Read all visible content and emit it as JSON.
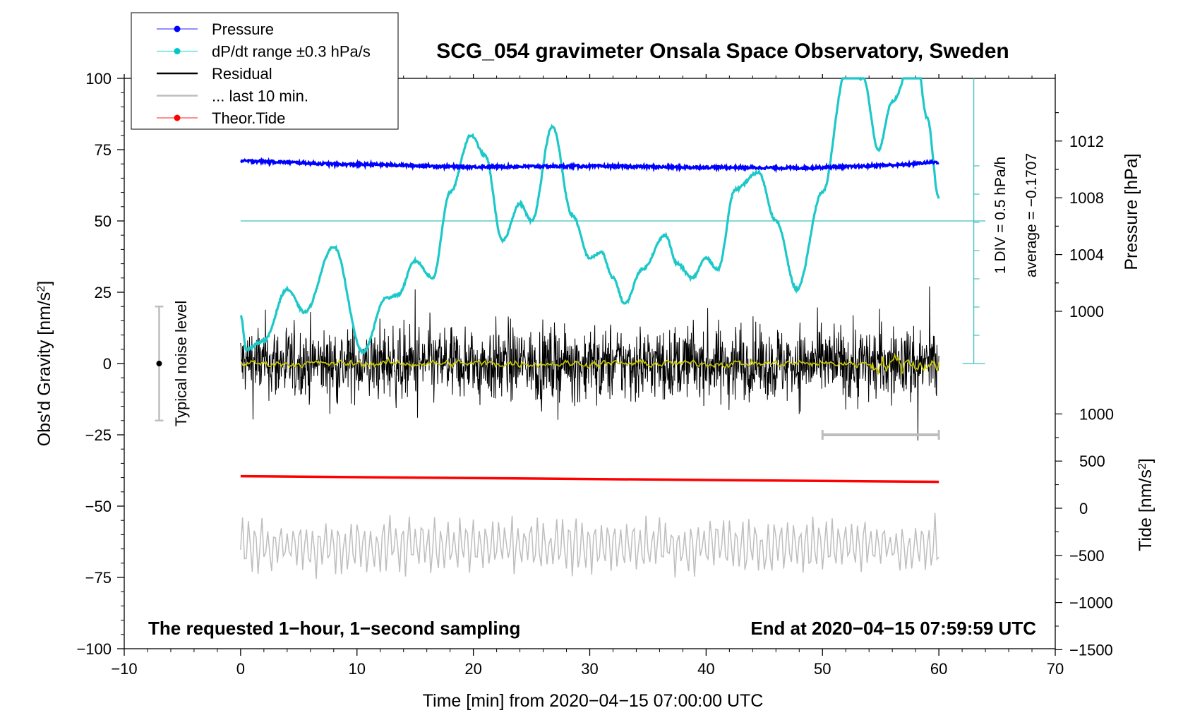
{
  "chart_data": {
    "type": "line",
    "title": "SCG_054 gravimeter Onsala Space Observatory, Sweden",
    "xlabel": "Time [min] from 2020−04−15 07:00:00 UTC",
    "ylabel_left_main": "Obs'd Gravity [nm/s",
    "ylabel_left_sup": "2",
    "ylabel_left_end": "]",
    "ylabel_right_pressure": "Pressure [hPa]",
    "ylabel_right_tide_main": "Tide [nm/s",
    "ylabel_right_tide_sup": "2",
    "ylabel_right_tide_end": "]",
    "xlim": [
      -10,
      70
    ],
    "ylim": [
      -100,
      100
    ],
    "pressure_axis_range": [
      996,
      1016
    ],
    "tide_axis_range": [
      -1500,
      1000
    ],
    "x_ticks": [
      -10,
      0,
      10,
      20,
      30,
      40,
      50,
      60,
      70
    ],
    "x_tick_labels": [
      "−10",
      "0",
      "10",
      "20",
      "30",
      "40",
      "50",
      "60",
      "70"
    ],
    "y_ticks": [
      100,
      75,
      50,
      25,
      0,
      -25,
      -50,
      -75,
      -100
    ],
    "y_tick_labels": [
      "100",
      "75",
      "50",
      "25",
      "0",
      "−25",
      "−50",
      "−75",
      "−100"
    ],
    "pressure_ticks": [
      1012,
      1008,
      1004,
      1000
    ],
    "pressure_tick_labels": [
      "1012",
      "1008",
      "1004",
      "1000"
    ],
    "tide_ticks": [
      1000,
      500,
      0,
      -500,
      -1000,
      -1500
    ],
    "tide_tick_labels": [
      "1000",
      "500",
      "0",
      "−500",
      "−1000",
      "−1500"
    ],
    "legend": {
      "position": "top-left",
      "entries": [
        {
          "label": "Pressure",
          "color": "#0000ff",
          "marker": true
        },
        {
          "label": "dP/dt range ±0.3 hPa/s",
          "color": "#00c8c8",
          "marker": true
        },
        {
          "label": "Residual",
          "color": "#000000",
          "marker": false
        },
        {
          "label": "... last 10 min.",
          "color": "#bebebe",
          "marker": false
        },
        {
          "label": "Theor.Tide",
          "color": "#ff0000",
          "marker": true
        }
      ]
    },
    "annotations": {
      "bottom_left": "The requested 1−hour, 1−second sampling",
      "bottom_right": "End at 2020−04−15 07:59:59 UTC",
      "noise_label": "Typical noise level",
      "scale_div": "1 DIV = 0.5 hPa/h",
      "scale_avg": "average = −0.1707"
    },
    "noise_bar": {
      "x": -7,
      "center": 0,
      "low": -20,
      "high": 20
    },
    "last10_bar": {
      "x_start": 50,
      "x_end": 60,
      "y": -25
    },
    "pressure_reference_level": 50,
    "series": [
      {
        "name": "Pressure",
        "color": "#0000ff",
        "x": [
          0,
          10,
          20,
          30,
          40,
          48,
          52,
          56,
          60
        ],
        "y": [
          71.0,
          69.8,
          69.0,
          69.2,
          68.8,
          68.6,
          69.0,
          69.6,
          70.6
        ]
      },
      {
        "name": "dP/dt range",
        "color": "#1ec8c8",
        "x": [
          0,
          0.5,
          2.0,
          4.0,
          5.5,
          8.0,
          10.5,
          12.5,
          13.5,
          15.0,
          16.5,
          18.0,
          19.8,
          21.0,
          22.5,
          24.0,
          25.0,
          26.8,
          28.5,
          30.0,
          31.0,
          32.0,
          33.0,
          34.5,
          36.5,
          37.5,
          38.8,
          40.0,
          41.0,
          42.5,
          44.5,
          46.0,
          47.8,
          50.0,
          52.0,
          53.5,
          54.8,
          56.0,
          58.0,
          59.0,
          60.0
        ],
        "y": [
          17,
          5,
          8,
          26,
          18,
          41,
          4,
          23,
          24,
          36,
          30,
          60,
          80,
          73,
          43,
          56,
          50,
          83,
          52,
          37,
          39,
          30,
          21,
          33,
          45,
          35,
          30,
          37,
          33,
          61,
          67,
          50,
          26,
          60,
          102,
          100,
          75,
          92,
          110,
          86,
          58
        ]
      },
      {
        "name": "Residual",
        "color": "#000000",
        "center": 0,
        "std": 6.5,
        "spikes": [
          {
            "x": 15.0,
            "y": 26
          },
          {
            "x": 15.2,
            "y": -19
          },
          {
            "x": 58.2,
            "y": -27
          },
          {
            "x": 59.2,
            "y": 27
          }
        ]
      },
      {
        "name": "Residual smoothed",
        "color": "#c8c800",
        "center": 0,
        "std": 1.0
      },
      {
        "name": "... last 10 min.",
        "color": "#bebebe",
        "center": -64,
        "amplitude": 9
      },
      {
        "name": "Theor.Tide",
        "color": "#ff0000",
        "x": [
          0,
          60
        ],
        "y": [
          -39.5,
          -41.5
        ]
      }
    ]
  }
}
